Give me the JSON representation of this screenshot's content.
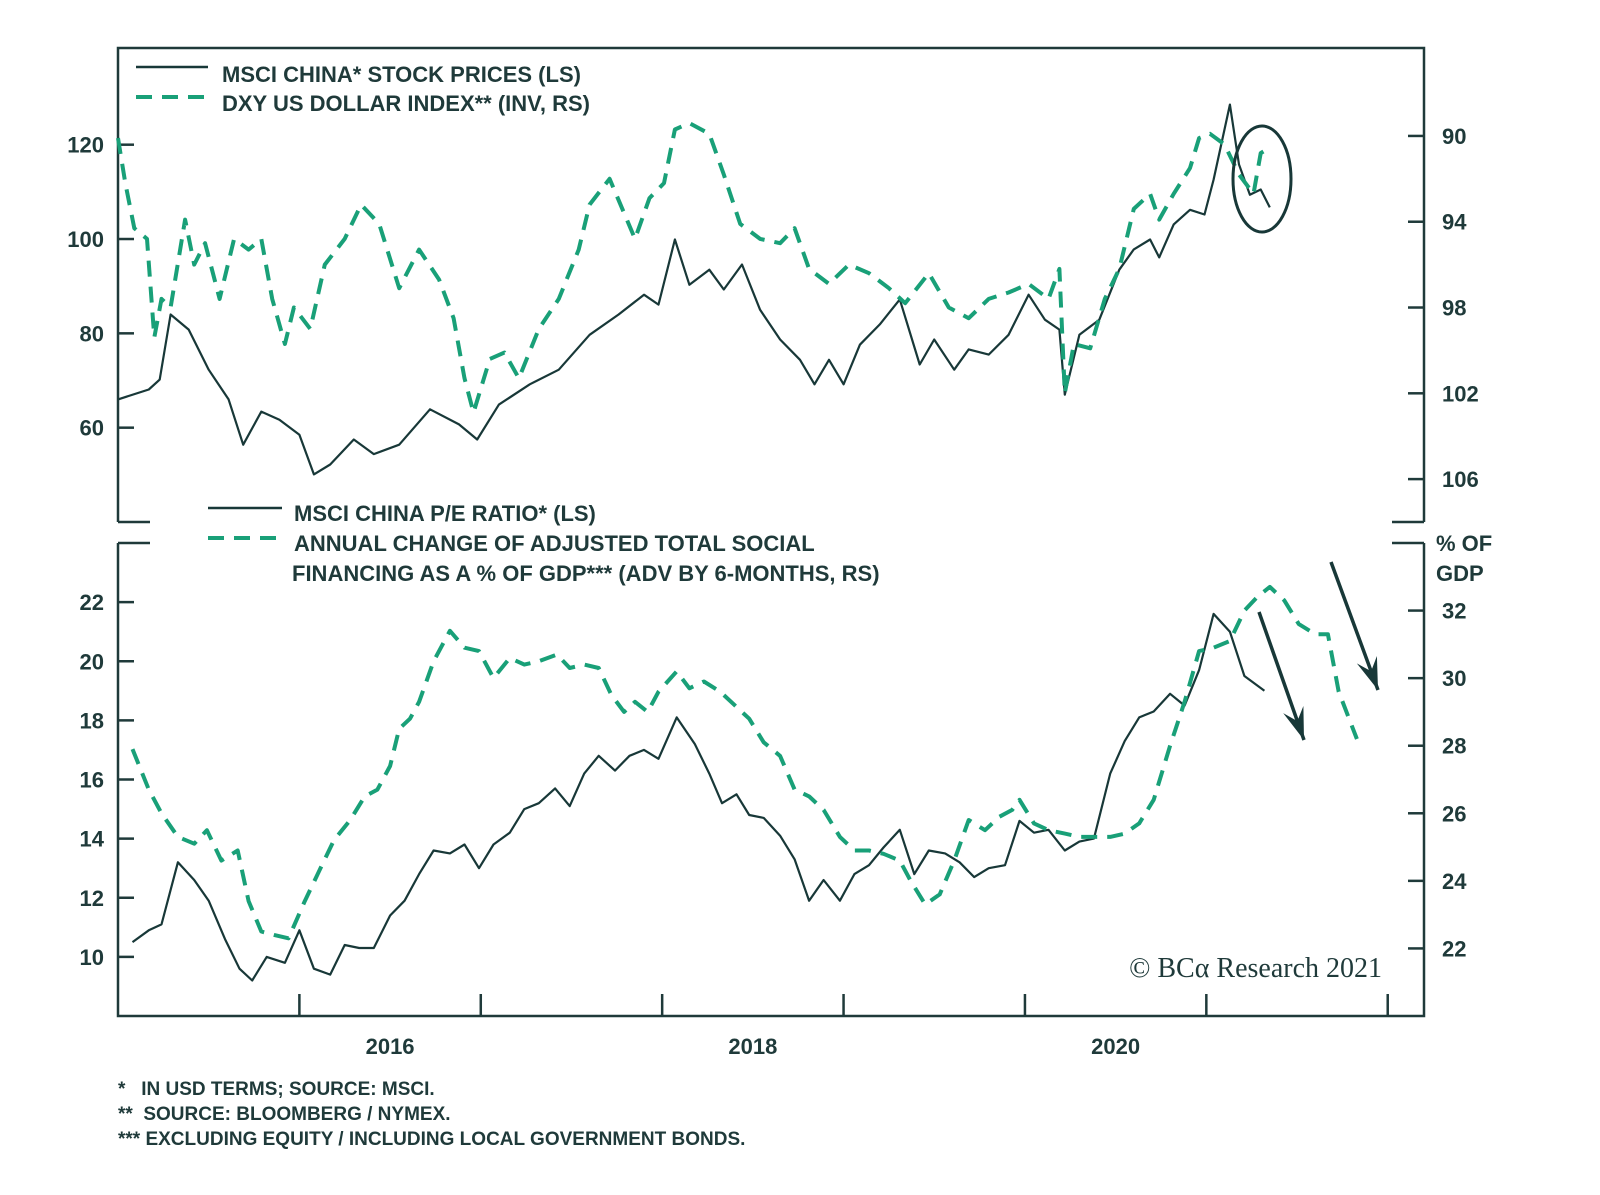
{
  "colors": {
    "dark": "#183838",
    "green": "#19a078",
    "axis": "#1f3a3a"
  },
  "chart_data": [
    {
      "type": "line",
      "panel": "top",
      "legend": [
        {
          "label": "MSCI CHINA* STOCK PRICES (LS)",
          "style": "solid"
        },
        {
          "label": "DXY US DOLLAR INDEX** (INV, RS)",
          "style": "dashed"
        }
      ],
      "y_left": {
        "ticks": [
          60,
          80,
          100,
          120
        ],
        "range": [
          40,
          140.5
        ]
      },
      "y_right": {
        "ticks": [
          90,
          94,
          98,
          102,
          106
        ],
        "range": [
          85.9,
          108
        ],
        "inverted": true
      },
      "x_range": [
        2015.0,
        2022.2
      ],
      "annotation": "circle around latest data (early 2021)",
      "series": [
        {
          "name": "MSCI CHINA* STOCK PRICES (LS)",
          "axis": "left",
          "x": [
            2015.0,
            2015.17,
            2015.23,
            2015.29,
            2015.39,
            2015.5,
            2015.61,
            2015.69,
            2015.79,
            2015.89,
            2016.0,
            2016.08,
            2016.17,
            2016.3,
            2016.41,
            2016.55,
            2016.72,
            2016.88,
            2016.98,
            2017.1,
            2017.27,
            2017.43,
            2017.6,
            2017.76,
            2017.9,
            2017.98,
            2018.07,
            2018.15,
            2018.26,
            2018.34,
            2018.44,
            2018.54,
            2018.65,
            2018.76,
            2018.84,
            2018.92,
            2019.0,
            2019.09,
            2019.2,
            2019.31,
            2019.42,
            2019.5,
            2019.61,
            2019.69,
            2019.8,
            2019.91,
            2020.02,
            2020.11,
            2020.19,
            2020.22,
            2020.3,
            2020.41,
            2020.52,
            2020.6,
            2020.69,
            2020.74,
            2020.82,
            2020.91,
            2020.99,
            2021.04,
            2021.13,
            2021.18,
            2021.24,
            2021.3,
            2021.35
          ],
          "y": [
            66.0,
            68.1,
            70.2,
            84.0,
            80.8,
            72.3,
            66.0,
            56.4,
            63.4,
            61.7,
            58.5,
            50.1,
            52.2,
            57.5,
            54.4,
            56.4,
            63.9,
            60.7,
            57.5,
            64.9,
            69.2,
            72.3,
            79.7,
            84.0,
            88.2,
            86.1,
            99.9,
            90.3,
            93.5,
            89.3,
            94.6,
            85.0,
            78.7,
            74.4,
            69.2,
            74.4,
            69.2,
            77.6,
            81.9,
            87.2,
            73.4,
            78.7,
            72.3,
            76.6,
            75.5,
            79.7,
            88.2,
            82.9,
            80.8,
            67.0,
            79.7,
            82.9,
            93.5,
            97.8,
            99.9,
            96.1,
            103.1,
            106.2,
            105.2,
            112.6,
            128.5,
            115.8,
            109.4,
            110.5,
            106.7
          ]
        },
        {
          "name": "DXY US DOLLAR INDEX** (INV, RS)",
          "axis": "right",
          "x": [
            2015.0,
            2015.04,
            2015.09,
            2015.16,
            2015.2,
            2015.24,
            2015.29,
            2015.37,
            2015.42,
            2015.48,
            2015.56,
            2015.64,
            2015.72,
            2015.79,
            2015.85,
            2015.92,
            2015.97,
            2016.06,
            2016.14,
            2016.25,
            2016.34,
            2016.44,
            2016.55,
            2016.66,
            2016.77,
            2016.85,
            2016.91,
            2016.96,
            2017.05,
            2017.13,
            2017.21,
            2017.32,
            2017.43,
            2017.54,
            2017.6,
            2017.71,
            2017.79,
            2017.85,
            2017.93,
            2018.01,
            2018.07,
            2018.15,
            2018.26,
            2018.34,
            2018.43,
            2018.54,
            2018.65,
            2018.73,
            2018.81,
            2018.92,
            2019.03,
            2019.14,
            2019.25,
            2019.34,
            2019.47,
            2019.58,
            2019.69,
            2019.8,
            2019.91,
            2020.02,
            2020.13,
            2020.19,
            2020.22,
            2020.27,
            2020.36,
            2020.44,
            2020.52,
            2020.6,
            2020.69,
            2020.74,
            2020.82,
            2020.91,
            2020.96,
            2021.02,
            2021.1,
            2021.18,
            2021.26,
            2021.3,
            2021.34
          ],
          "y": [
            90.1,
            92.2,
            94.3,
            94.8,
            99.4,
            97.6,
            98.0,
            93.9,
            96.0,
            95.0,
            97.6,
            94.8,
            95.3,
            94.8,
            97.6,
            99.7,
            98.0,
            99.0,
            96.0,
            94.8,
            93.2,
            94.1,
            97.1,
            95.3,
            96.7,
            98.5,
            101.3,
            102.9,
            100.4,
            100.1,
            101.3,
            99.0,
            97.6,
            95.3,
            93.2,
            92.0,
            93.6,
            94.8,
            92.9,
            92.2,
            89.7,
            89.4,
            89.9,
            91.8,
            94.1,
            94.8,
            95.0,
            94.3,
            96.2,
            96.9,
            96.0,
            96.4,
            97.1,
            97.8,
            96.4,
            98.0,
            98.5,
            97.6,
            97.3,
            96.9,
            97.6,
            96.2,
            102.0,
            99.7,
            99.9,
            97.6,
            96.2,
            93.4,
            92.7,
            93.9,
            92.7,
            91.5,
            90.1,
            89.9,
            90.4,
            91.8,
            92.7,
            90.8,
            90.6
          ]
        }
      ]
    },
    {
      "type": "line",
      "panel": "bottom",
      "legend": [
        {
          "label": "MSCI CHINA P/E RATIO* (LS)",
          "style": "solid"
        },
        {
          "label": "ANNUAL CHANGE OF ADJUSTED TOTAL SOCIAL",
          "label2": "FINANCING AS A % OF GDP*** (ADV BY 6-MONTHS, RS)",
          "style": "dashed"
        }
      ],
      "y_left": {
        "ticks": [
          10,
          12,
          14,
          16,
          18,
          20,
          22
        ],
        "range": [
          8,
          24
        ]
      },
      "y_right": {
        "ticks": [
          22,
          24,
          26,
          28,
          30,
          32
        ],
        "range": [
          20,
          34
        ],
        "unit_line1": "% OF",
        "unit_line2": "GDP"
      },
      "x_range": [
        2015.0,
        2022.2
      ],
      "xticks": [
        2016,
        2017,
        2018,
        2019,
        2020,
        2021,
        2022
      ],
      "xtick_labels": [
        {
          "value": 2016.5,
          "label": "2016"
        },
        {
          "value": 2018.5,
          "label": "2018"
        },
        {
          "value": 2020.5,
          "label": "2020"
        }
      ],
      "annotation": "downward arrows indicating expected decline",
      "series": [
        {
          "name": "MSCI CHINA P/E RATIO* (LS)",
          "axis": "left",
          "x": [
            2015.08,
            2015.17,
            2015.24,
            2015.33,
            2015.42,
            2015.5,
            2015.59,
            2015.67,
            2015.74,
            2015.82,
            2015.92,
            2016.0,
            2016.08,
            2016.17,
            2016.25,
            2016.33,
            2016.41,
            2016.5,
            2016.58,
            2016.66,
            2016.74,
            2016.83,
            2016.91,
            2016.99,
            2017.07,
            2017.16,
            2017.24,
            2017.32,
            2017.41,
            2017.49,
            2017.57,
            2017.65,
            2017.74,
            2017.82,
            2017.9,
            2017.98,
            2018.08,
            2018.18,
            2018.26,
            2018.33,
            2018.41,
            2018.48,
            2018.56,
            2018.65,
            2018.73,
            2018.81,
            2018.89,
            2018.98,
            2019.06,
            2019.14,
            2019.22,
            2019.31,
            2019.39,
            2019.47,
            2019.56,
            2019.64,
            2019.72,
            2019.8,
            2019.89,
            2019.97,
            2020.05,
            2020.13,
            2020.22,
            2020.3,
            2020.38,
            2020.47,
            2020.55,
            2020.63,
            2020.71,
            2020.8,
            2020.88,
            2020.96,
            2021.04,
            2021.13,
            2021.21,
            2021.32
          ],
          "y": [
            10.5,
            10.9,
            11.1,
            13.2,
            12.6,
            11.9,
            10.6,
            9.6,
            9.2,
            10.0,
            9.8,
            10.9,
            9.6,
            9.4,
            10.4,
            10.3,
            10.3,
            11.4,
            11.9,
            12.8,
            13.6,
            13.5,
            13.8,
            13.0,
            13.8,
            14.2,
            15.0,
            15.2,
            15.7,
            15.1,
            16.2,
            16.8,
            16.3,
            16.8,
            17.0,
            16.7,
            18.1,
            17.2,
            16.2,
            15.2,
            15.5,
            14.8,
            14.7,
            14.1,
            13.3,
            11.9,
            12.6,
            11.9,
            12.8,
            13.1,
            13.7,
            14.3,
            12.8,
            13.6,
            13.5,
            13.2,
            12.7,
            13.0,
            13.1,
            14.6,
            14.2,
            14.3,
            13.6,
            13.9,
            14.0,
            16.2,
            17.3,
            18.1,
            18.3,
            18.9,
            18.5,
            19.7,
            21.6,
            21.0,
            19.5,
            19.0
          ]
        },
        {
          "name": "ANNUAL CHANGE OF ADJUSTED TOTAL SOCIAL FINANCING AS A % OF GDP*** (ADV BY 6-MONTHS, RS)",
          "axis": "right",
          "x": [
            2015.08,
            2015.17,
            2015.24,
            2015.33,
            2015.42,
            2015.49,
            2015.57,
            2015.66,
            2015.72,
            2015.79,
            2015.86,
            2015.94,
            2016.03,
            2016.11,
            2016.19,
            2016.28,
            2016.36,
            2016.43,
            2016.5,
            2016.55,
            2016.61,
            2016.66,
            2016.74,
            2016.83,
            2016.91,
            2016.99,
            2017.07,
            2017.16,
            2017.24,
            2017.32,
            2017.42,
            2017.49,
            2017.57,
            2017.65,
            2017.72,
            2017.79,
            2017.85,
            2017.92,
            2017.98,
            2018.08,
            2018.15,
            2018.23,
            2018.32,
            2018.4,
            2018.48,
            2018.56,
            2018.65,
            2018.73,
            2018.81,
            2018.89,
            2018.98,
            2019.06,
            2019.14,
            2019.22,
            2019.31,
            2019.37,
            2019.45,
            2019.53,
            2019.61,
            2019.69,
            2019.78,
            2019.86,
            2019.93,
            2019.97,
            2020.05,
            2020.13,
            2020.22,
            2020.3,
            2020.38,
            2020.47,
            2020.55,
            2020.63,
            2020.71,
            2020.8,
            2020.88,
            2020.96,
            2021.04,
            2021.13,
            2021.21,
            2021.28,
            2021.35,
            2021.43,
            2021.51,
            2021.6,
            2021.67,
            2021.73,
            2021.83
          ],
          "y": [
            27.9,
            26.7,
            26.0,
            25.3,
            25.1,
            25.5,
            24.6,
            24.9,
            23.4,
            22.5,
            22.4,
            22.3,
            23.4,
            24.3,
            25.2,
            25.8,
            26.5,
            26.7,
            27.4,
            28.5,
            28.8,
            29.3,
            30.5,
            31.4,
            30.9,
            30.8,
            30.0,
            30.6,
            30.4,
            30.5,
            30.7,
            30.3,
            30.4,
            30.3,
            29.5,
            29.0,
            29.3,
            29.0,
            29.6,
            30.2,
            29.7,
            29.9,
            29.6,
            29.2,
            28.8,
            28.1,
            27.7,
            26.7,
            26.5,
            26.1,
            25.3,
            24.9,
            24.9,
            24.8,
            24.6,
            24.0,
            23.3,
            23.6,
            24.6,
            25.8,
            25.5,
            25.9,
            26.1,
            26.4,
            25.7,
            25.5,
            25.4,
            25.3,
            25.3,
            25.3,
            25.4,
            25.7,
            26.4,
            28.0,
            29.3,
            30.8,
            30.9,
            31.1,
            32.0,
            32.4,
            32.7,
            32.3,
            31.6,
            31.3,
            31.3,
            29.6,
            28.2
          ]
        }
      ]
    }
  ],
  "brand": "© BCα Research 2021",
  "footnotes": [
    "*   IN USD TERMS; SOURCE: MSCI.",
    "**  SOURCE: BLOOMBERG / NYMEX.",
    "*** EXCLUDING EQUITY / INCLUDING LOCAL GOVERNMENT BONDS."
  ]
}
